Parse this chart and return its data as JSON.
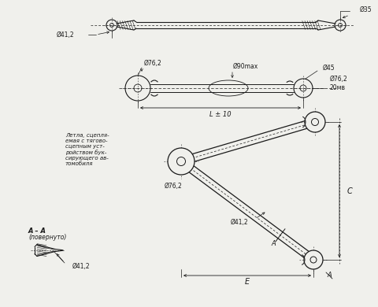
{
  "bg_color": "#f0f0ec",
  "line_color": "#1a1a1a",
  "fig_width": 4.81,
  "fig_height": 3.9,
  "dpi": 100,
  "annotations": {
    "phi35": "Ø35",
    "phi41_2_top": "Ø41,2",
    "phi76_2_mid": "Ø76,2",
    "phi90max": "Ø90max",
    "phi45": "Ø45",
    "L_pm10": "L ± 10",
    "phi76_2_right": "Ø76,2\n20мв",
    "phi76_2_low": "Ø76,2",
    "phi41_2_low": "Ø41,2",
    "C_label": "C",
    "E_label": "E",
    "A_label": "A",
    "note_text": "Летла, сцепля-\nемая с тягово-\nсцепным уст-\nройством бук-\nсирующего ав-\nтомобиля",
    "AA_label": "A – A",
    "AA_sub": "(повернуто)"
  }
}
